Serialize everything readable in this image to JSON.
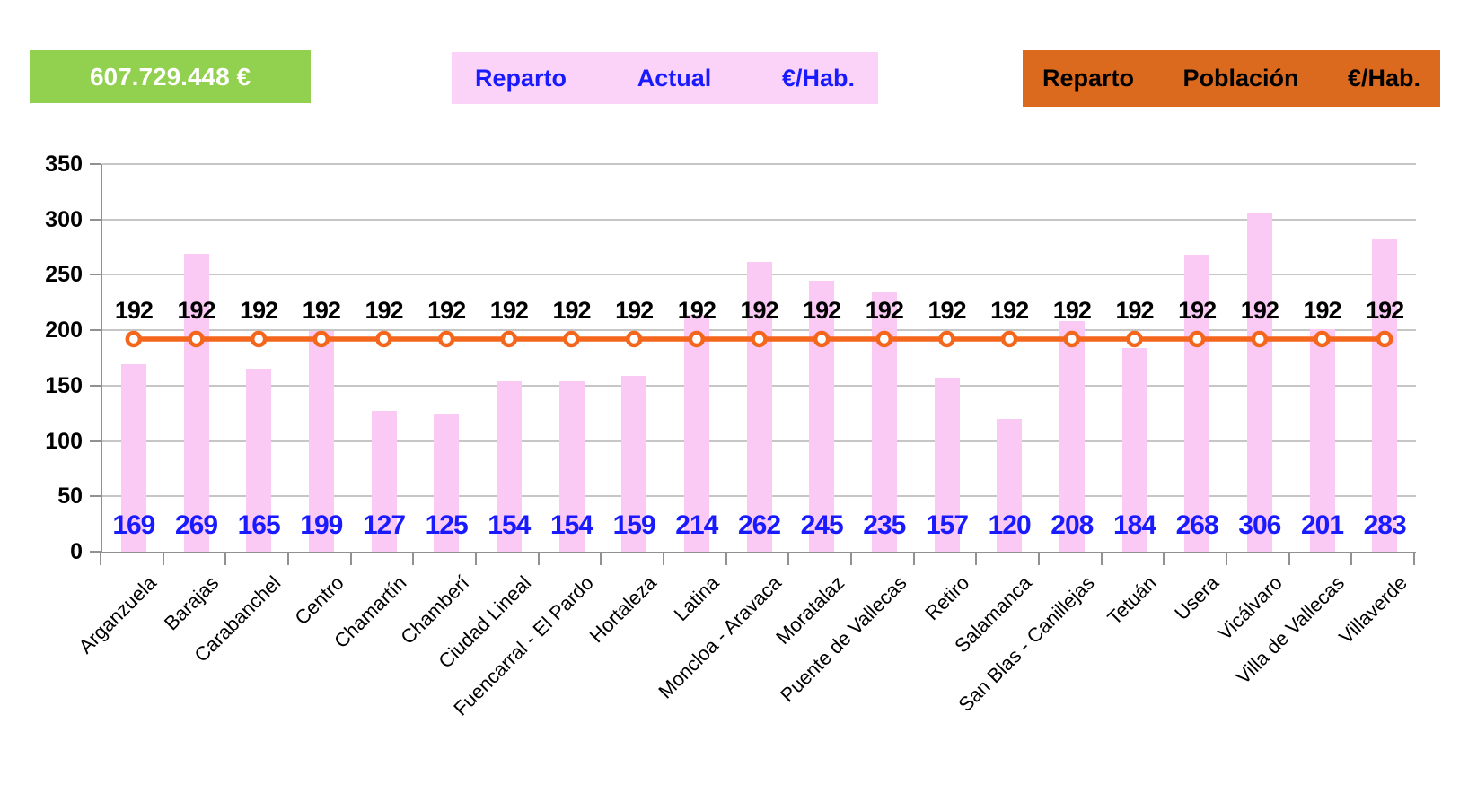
{
  "header": {
    "total_box": {
      "label": "607.729.448 €",
      "bg": "#92D050",
      "text_color": "#FFFFFF"
    },
    "actual_box": {
      "words": [
        "Reparto",
        "Actual",
        "€/Hab."
      ],
      "bg": "#FBD3F8",
      "text_color": "#1A1AFF"
    },
    "poblacion_box": {
      "words": [
        "Reparto",
        "Población",
        "€/Hab."
      ],
      "bg": "#DC6A1E",
      "text_color": "#000000"
    }
  },
  "chart_data": {
    "type": "bar",
    "title": "",
    "xlabel": "",
    "ylabel": "",
    "categories": [
      "Arganzuela",
      "Barajas",
      "Carabanchel",
      "Centro",
      "Chamartín",
      "Chamberí",
      "Ciudad Lineal",
      "Fuencarral - El Pardo",
      "Hortaleza",
      "Latina",
      "Moncloa - Aravaca",
      "Moratalaz",
      "Puente de Vallecas",
      "Retiro",
      "Salamanca",
      "San Blas - Canillejas",
      "Tetuán",
      "Usera",
      "Vicálvaro",
      "Villa de Vallecas",
      "Villaverde"
    ],
    "series": [
      {
        "name": "Reparto Actual €/Hab.",
        "type": "bar",
        "color": "#FAC9F4",
        "label_color": "#1A1AFF",
        "values": [
          169,
          269,
          165,
          199,
          127,
          125,
          154,
          154,
          159,
          214,
          262,
          245,
          235,
          157,
          120,
          208,
          184,
          268,
          306,
          201,
          283
        ]
      },
      {
        "name": "Reparto Población €/Hab.",
        "type": "line",
        "color": "#F4661C",
        "marker": "circle-open",
        "label_color": "#000000",
        "values": [
          192,
          192,
          192,
          192,
          192,
          192,
          192,
          192,
          192,
          192,
          192,
          192,
          192,
          192,
          192,
          192,
          192,
          192,
          192,
          192,
          192
        ]
      }
    ],
    "ylim": [
      0,
      350
    ],
    "ytick_step": 50,
    "ytick_labels": [
      "0",
      "50",
      "100",
      "150",
      "200",
      "250",
      "300",
      "350"
    ],
    "grid": true,
    "gridline_color": "#C6C6C6",
    "axis_color": "#919191",
    "legend_position": "none"
  }
}
